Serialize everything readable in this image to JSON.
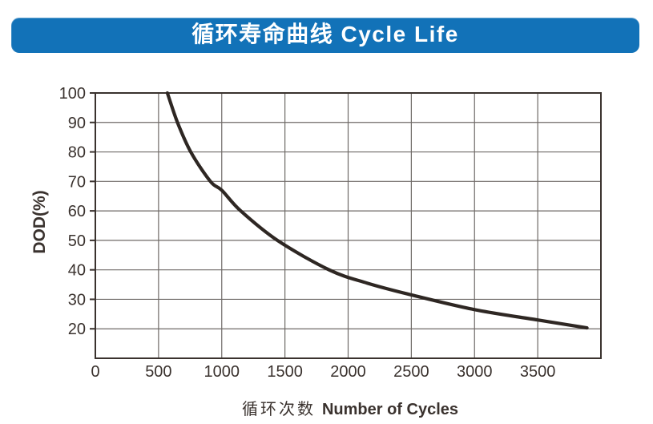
{
  "banner": {
    "title": "循环寿命曲线 Cycle Life",
    "bg_color": "#1272b8",
    "text_color": "#ffffff"
  },
  "chart_data": {
    "type": "line",
    "title": "循环寿命曲线 Cycle Life",
    "xlabel": "循环次数 Number of Cycles",
    "xlabel_cn": "循环次数",
    "xlabel_en": "Number of Cycles",
    "ylabel": "DOD(%)",
    "xlim": [
      0,
      4000
    ],
    "ylim": [
      10,
      100
    ],
    "x_ticks": [
      0,
      500,
      1000,
      1500,
      2000,
      2500,
      3000,
      3500
    ],
    "y_ticks": [
      100,
      90,
      80,
      70,
      60,
      50,
      40,
      30,
      20
    ],
    "grid": true,
    "legend_position": "none",
    "series": [
      {
        "name": "cycle-life-curve",
        "points_cycles_dod": [
          [
            570,
            100
          ],
          [
            650,
            90
          ],
          [
            755,
            80
          ],
          [
            910,
            70
          ],
          [
            1000,
            67
          ],
          [
            1150,
            60
          ],
          [
            1440,
            50
          ],
          [
            1850,
            40
          ],
          [
            2150,
            35.5
          ],
          [
            2500,
            31.5
          ],
          [
            3000,
            26.5
          ],
          [
            3500,
            23
          ],
          [
            3890,
            20.3
          ]
        ]
      }
    ],
    "colors": {
      "curve": "#2e2723",
      "axis": "#3a322e",
      "grid": "#6f6a67",
      "text": "#3a322e"
    }
  }
}
